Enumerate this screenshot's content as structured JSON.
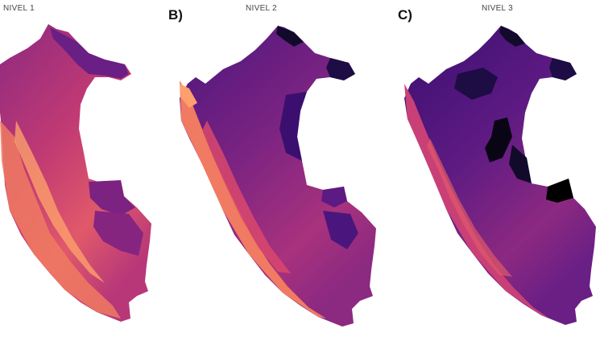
{
  "panels": [
    {
      "letter": "",
      "title": "NIVEL 1"
    },
    {
      "letter": "B)",
      "title": "NIVEL 2"
    },
    {
      "letter": "C)",
      "title": "NIVEL 3"
    }
  ],
  "colors": {
    "dark": "#120a2a",
    "deep_purple": "#3b0f6f",
    "purple": "#5c1a82",
    "magenta": "#8c2981",
    "rose": "#b73779",
    "coral": "#de4968",
    "orange": "#f7705c",
    "light_orange": "#fe9f6d",
    "pale": "#fecf92"
  }
}
